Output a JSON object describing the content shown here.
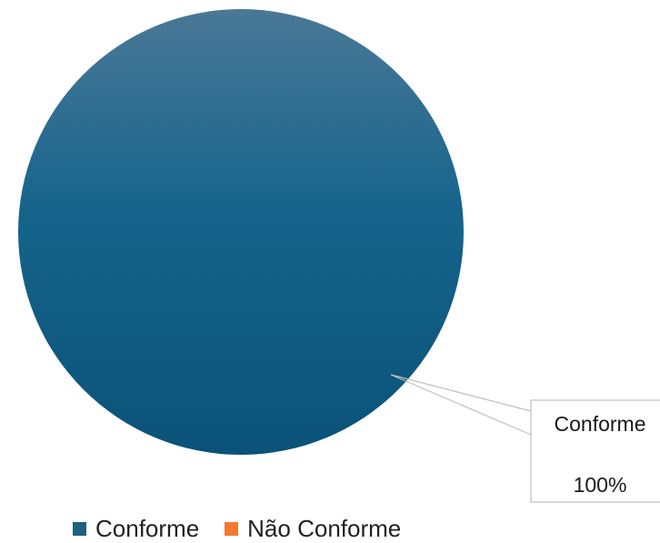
{
  "chart_data": {
    "type": "pie",
    "categories": [
      "Conforme",
      "Não Conforme"
    ],
    "values": [
      100,
      0
    ],
    "data_labels": [
      {
        "category": "Conforme",
        "name_text": "Conforme",
        "value_text": "100%"
      }
    ],
    "legend_position": "bottom",
    "colors": {
      "Conforme": "#0f5a80",
      "Não Conforme": "#f07a32",
      "callout_border": "#bfbfbf"
    }
  },
  "legend": {
    "items": [
      {
        "label": "Conforme",
        "color": "#1f5f80"
      },
      {
        "label": "Não Conforme",
        "color": "#f07a32"
      }
    ]
  }
}
